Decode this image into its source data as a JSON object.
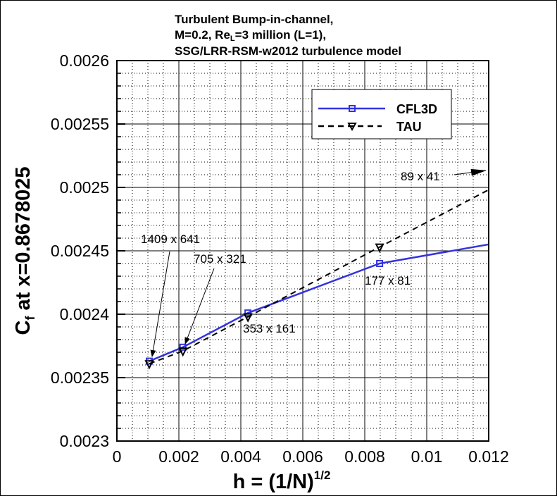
{
  "chart_data": {
    "type": "line",
    "title_lines": [
      "Turbulent Bump-in-channel,",
      "M=0.2, Re",
      "L",
      "=3 million (L=1),",
      "SSG/LRR-RSM-w2012 turbulence model"
    ],
    "xlabel": {
      "main": "h = (1/N)",
      "sup": "1/2"
    },
    "ylabel": {
      "main": "C",
      "sub": "f",
      "rest": " at x=0.8678025"
    },
    "xlim": [
      0,
      0.012
    ],
    "ylim": [
      0.0023,
      0.0026
    ],
    "xticks": [
      "0",
      "0.002",
      "0.004",
      "0.006",
      "0.008",
      "0.01",
      "0.012"
    ],
    "xtick_values": [
      0,
      0.002,
      0.004,
      0.006,
      0.008,
      0.01,
      0.012
    ],
    "yticks": [
      "0.0023",
      "0.00235",
      "0.0024",
      "0.00245",
      "0.0025",
      "0.00255",
      "0.0026"
    ],
    "ytick_values": [
      0.0023,
      0.00235,
      0.0024,
      0.00245,
      0.0025,
      0.00255,
      0.0026
    ],
    "grid": true,
    "legend_placement": "top-right",
    "series": [
      {
        "name": "CFL3D",
        "color": "#3333dd",
        "line": "solid",
        "marker": "square",
        "x": [
          0.001045,
          0.00213,
          0.00423,
          0.00848,
          0.0169
        ],
        "y": [
          0.002363,
          0.002374,
          0.002401,
          0.00244,
          0.002476
        ]
      },
      {
        "name": "TAU",
        "color": "#000000",
        "line": "dashed",
        "marker": "triangle-down",
        "x": [
          0.001045,
          0.00213,
          0.00423,
          0.00848,
          0.0169
        ],
        "y": [
          0.002361,
          0.002371,
          0.002398,
          0.002453,
          0.002561
        ]
      }
    ],
    "annotations": [
      "1409 x 641",
      "705 x 321",
      "353 x 161",
      "177 x 81",
      "89 x 41"
    ]
  }
}
